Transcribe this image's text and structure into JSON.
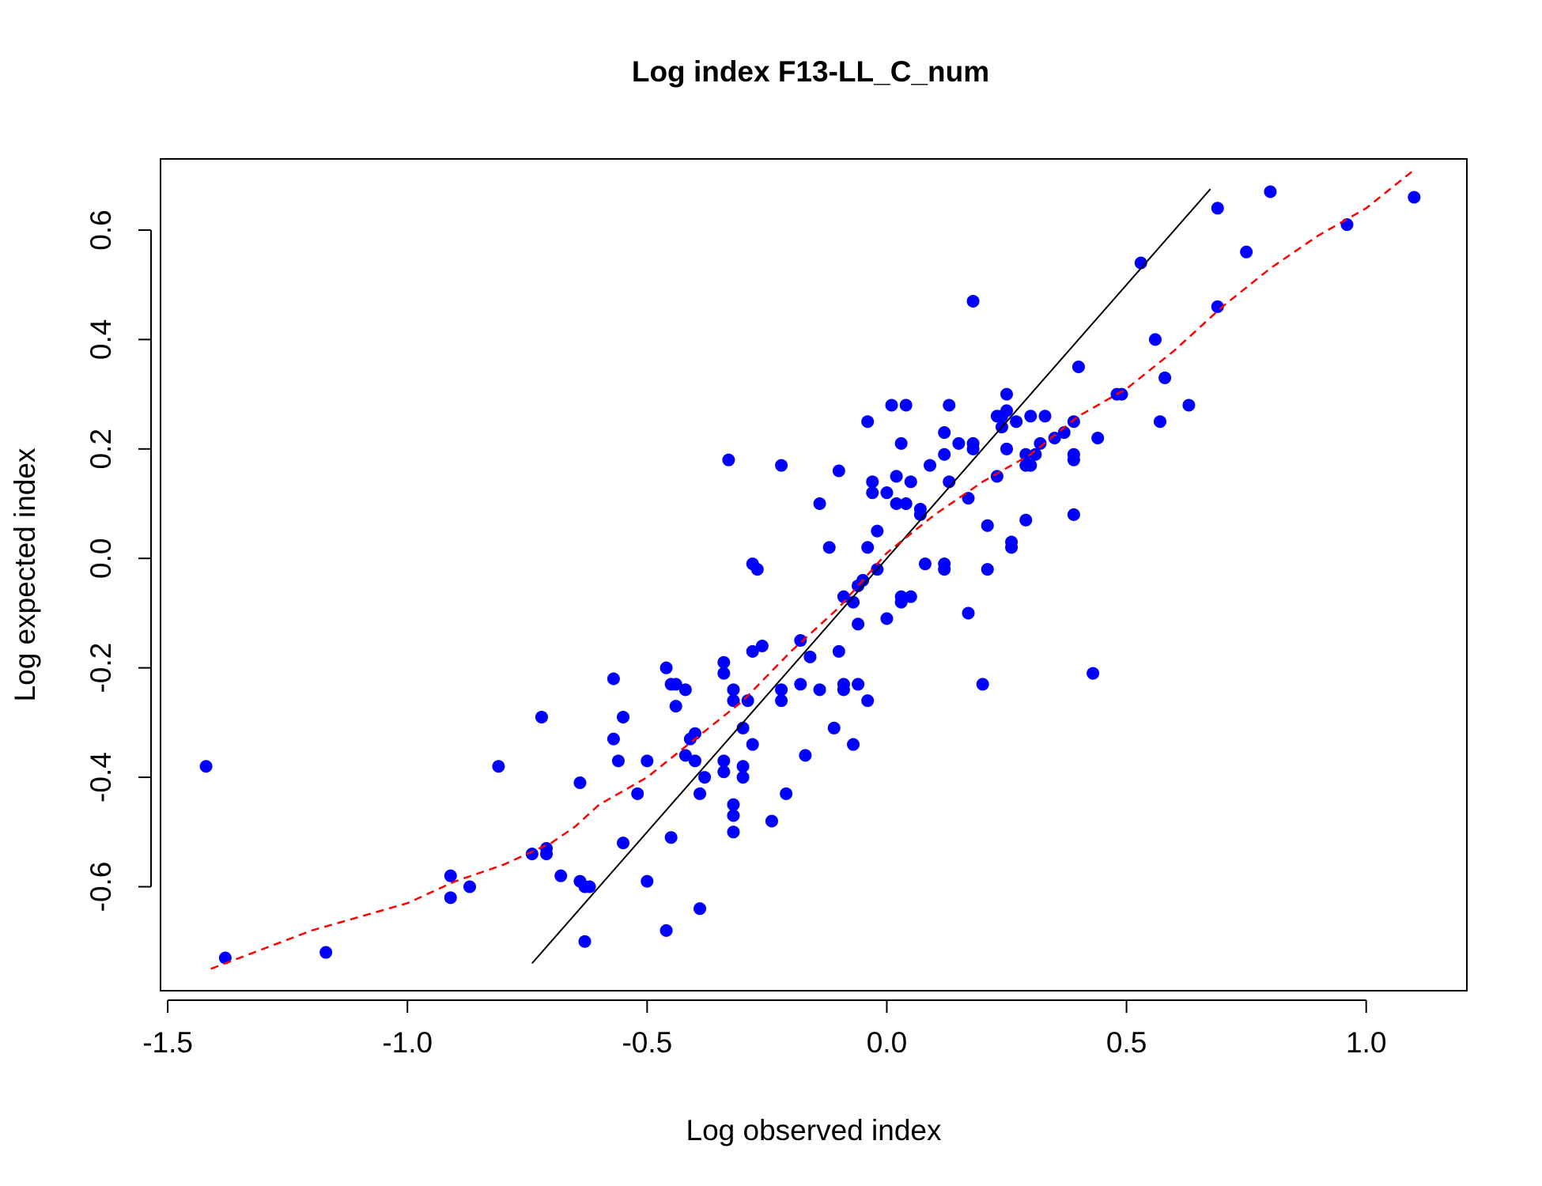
{
  "chart_data": {
    "type": "scatter",
    "title": "Log index F13-LL_C_num",
    "xlabel": "Log observed index",
    "ylabel": "Log expected index",
    "xlim": [
      -1.515,
      1.21
    ],
    "ylim": [
      -0.79,
      0.73
    ],
    "xticks": [
      -1.5,
      -1.0,
      -0.5,
      0.0,
      0.5,
      1.0
    ],
    "xtick_labels": [
      "-1.5",
      "-1.0",
      "-0.5",
      "0.0",
      "0.5",
      "1.0"
    ],
    "yticks": [
      -0.6,
      -0.4,
      -0.2,
      0.0,
      0.2,
      0.4,
      0.6
    ],
    "ytick_labels": [
      "-0.6",
      "-0.4",
      "-0.2",
      "0.0",
      "0.2",
      "0.4",
      "0.6"
    ],
    "grid": false,
    "colors": {
      "points": "#0000ff",
      "identity_line": "#000000",
      "smoother": "#ff0000"
    },
    "series": [
      {
        "points": [
          [
            -1.42,
            -0.38
          ],
          [
            -1.38,
            -0.73
          ],
          [
            -1.17,
            -0.72
          ],
          [
            -0.91,
            -0.58
          ],
          [
            -0.91,
            -0.62
          ],
          [
            -0.87,
            -0.6
          ],
          [
            -0.81,
            -0.38
          ],
          [
            -0.74,
            -0.54
          ],
          [
            -0.72,
            -0.29
          ],
          [
            -0.71,
            -0.53
          ],
          [
            -0.71,
            -0.54
          ],
          [
            -0.68,
            -0.58
          ],
          [
            -0.64,
            -0.41
          ],
          [
            -0.64,
            -0.59
          ],
          [
            -0.63,
            -0.6
          ],
          [
            -0.62,
            -0.6
          ],
          [
            -0.63,
            -0.7
          ],
          [
            -0.57,
            -0.22
          ],
          [
            -0.57,
            -0.33
          ],
          [
            -0.56,
            -0.37
          ],
          [
            -0.55,
            -0.29
          ],
          [
            -0.55,
            -0.52
          ],
          [
            -0.52,
            -0.43
          ],
          [
            -0.5,
            -0.37
          ],
          [
            -0.5,
            -0.59
          ],
          [
            -0.46,
            -0.2
          ],
          [
            -0.45,
            -0.23
          ],
          [
            -0.44,
            -0.23
          ],
          [
            -0.44,
            -0.27
          ],
          [
            -0.42,
            -0.24
          ],
          [
            -0.42,
            -0.36
          ],
          [
            -0.41,
            -0.33
          ],
          [
            -0.4,
            -0.32
          ],
          [
            -0.4,
            -0.37
          ],
          [
            -0.39,
            -0.43
          ],
          [
            -0.38,
            -0.4
          ],
          [
            -0.45,
            -0.51
          ],
          [
            -0.46,
            -0.68
          ],
          [
            -0.39,
            -0.64
          ],
          [
            -0.34,
            -0.19
          ],
          [
            -0.34,
            -0.21
          ],
          [
            -0.34,
            -0.37
          ],
          [
            -0.34,
            -0.39
          ],
          [
            -0.33,
            0.18
          ],
          [
            -0.32,
            -0.24
          ],
          [
            -0.32,
            -0.26
          ],
          [
            -0.32,
            -0.45
          ],
          [
            -0.32,
            -0.47
          ],
          [
            -0.32,
            -0.5
          ],
          [
            -0.3,
            -0.31
          ],
          [
            -0.3,
            -0.38
          ],
          [
            -0.3,
            -0.4
          ],
          [
            -0.29,
            -0.26
          ],
          [
            -0.28,
            -0.01
          ],
          [
            -0.28,
            -0.17
          ],
          [
            -0.28,
            -0.34
          ],
          [
            -0.27,
            -0.02
          ],
          [
            -0.26,
            -0.16
          ],
          [
            -0.24,
            -0.48
          ],
          [
            -0.22,
            0.17
          ],
          [
            -0.22,
            -0.24
          ],
          [
            -0.22,
            -0.26
          ],
          [
            -0.21,
            -0.43
          ],
          [
            -0.18,
            -0.15
          ],
          [
            -0.18,
            -0.23
          ],
          [
            -0.17,
            -0.36
          ],
          [
            -0.16,
            -0.18
          ],
          [
            -0.14,
            0.1
          ],
          [
            -0.14,
            -0.24
          ],
          [
            -0.12,
            0.02
          ],
          [
            -0.11,
            -0.31
          ],
          [
            -0.1,
            0.16
          ],
          [
            -0.1,
            -0.17
          ],
          [
            -0.09,
            -0.07
          ],
          [
            -0.09,
            -0.23
          ],
          [
            -0.09,
            -0.24
          ],
          [
            -0.07,
            -0.08
          ],
          [
            -0.07,
            -0.34
          ],
          [
            -0.06,
            -0.05
          ],
          [
            -0.06,
            -0.12
          ],
          [
            -0.06,
            -0.23
          ],
          [
            -0.05,
            -0.04
          ],
          [
            -0.04,
            0.25
          ],
          [
            -0.04,
            0.02
          ],
          [
            -0.04,
            -0.26
          ],
          [
            -0.03,
            0.14
          ],
          [
            -0.03,
            0.12
          ],
          [
            -0.02,
            0.05
          ],
          [
            -0.02,
            -0.02
          ],
          [
            0.0,
            0.12
          ],
          [
            0.0,
            -0.11
          ],
          [
            0.01,
            0.28
          ],
          [
            0.02,
            0.15
          ],
          [
            0.02,
            0.1
          ],
          [
            0.03,
            0.21
          ],
          [
            0.03,
            -0.07
          ],
          [
            0.03,
            -0.08
          ],
          [
            0.04,
            0.28
          ],
          [
            0.04,
            0.1
          ],
          [
            0.05,
            0.14
          ],
          [
            0.05,
            -0.07
          ],
          [
            0.07,
            0.09
          ],
          [
            0.07,
            0.08
          ],
          [
            0.08,
            -0.01
          ],
          [
            0.09,
            0.17
          ],
          [
            0.12,
            0.23
          ],
          [
            0.12,
            0.19
          ],
          [
            0.12,
            -0.01
          ],
          [
            0.12,
            -0.02
          ],
          [
            0.13,
            0.28
          ],
          [
            0.13,
            0.14
          ],
          [
            0.15,
            0.21
          ],
          [
            0.17,
            0.11
          ],
          [
            0.17,
            -0.1
          ],
          [
            0.18,
            0.47
          ],
          [
            0.18,
            0.21
          ],
          [
            0.18,
            0.2
          ],
          [
            0.2,
            -0.23
          ],
          [
            0.21,
            0.06
          ],
          [
            0.21,
            -0.02
          ],
          [
            0.23,
            0.26
          ],
          [
            0.23,
            0.15
          ],
          [
            0.24,
            0.24
          ],
          [
            0.24,
            0.26
          ],
          [
            0.25,
            0.3
          ],
          [
            0.25,
            0.27
          ],
          [
            0.25,
            0.2
          ],
          [
            0.26,
            0.03
          ],
          [
            0.26,
            0.02
          ],
          [
            0.27,
            0.25
          ],
          [
            0.29,
            0.19
          ],
          [
            0.29,
            0.17
          ],
          [
            0.29,
            0.07
          ],
          [
            0.3,
            0.26
          ],
          [
            0.3,
            0.17
          ],
          [
            0.31,
            0.19
          ],
          [
            0.32,
            0.21
          ],
          [
            0.33,
            0.26
          ],
          [
            0.35,
            0.22
          ],
          [
            0.37,
            0.23
          ],
          [
            0.39,
            0.25
          ],
          [
            0.39,
            0.19
          ],
          [
            0.39,
            0.18
          ],
          [
            0.39,
            0.08
          ],
          [
            0.4,
            0.35
          ],
          [
            0.43,
            -0.21
          ],
          [
            0.44,
            0.22
          ],
          [
            0.48,
            0.3
          ],
          [
            0.49,
            0.3
          ],
          [
            0.53,
            0.54
          ],
          [
            0.56,
            0.4
          ],
          [
            0.57,
            0.25
          ],
          [
            0.58,
            0.33
          ],
          [
            0.63,
            0.28
          ],
          [
            0.69,
            0.64
          ],
          [
            0.69,
            0.46
          ],
          [
            0.75,
            0.56
          ],
          [
            0.8,
            0.67
          ],
          [
            0.96,
            0.61
          ],
          [
            1.1,
            0.66
          ]
        ]
      }
    ],
    "identity_line": {
      "x": [
        -0.74,
        0.675
      ],
      "y": [
        -0.74,
        0.675
      ]
    },
    "smoother": {
      "x": [
        -1.41,
        -1.2,
        -1.0,
        -0.9,
        -0.8,
        -0.7,
        -0.65,
        -0.6,
        -0.5,
        -0.4,
        -0.3,
        -0.2,
        -0.1,
        0.0,
        0.1,
        0.2,
        0.3,
        0.4,
        0.5,
        0.6,
        0.7,
        0.8,
        0.9,
        1.0,
        1.1
      ],
      "y": [
        -0.75,
        -0.68,
        -0.63,
        -0.59,
        -0.56,
        -0.52,
        -0.49,
        -0.45,
        -0.4,
        -0.33,
        -0.26,
        -0.17,
        -0.09,
        0.01,
        0.08,
        0.14,
        0.19,
        0.26,
        0.31,
        0.38,
        0.46,
        0.53,
        0.59,
        0.64,
        0.71
      ]
    }
  }
}
